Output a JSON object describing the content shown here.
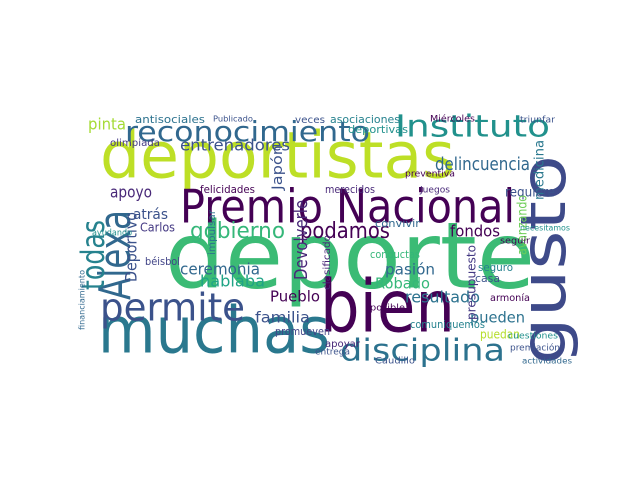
{
  "words": [
    "deportistas",
    "deporte",
    "muchas",
    "bien",
    "gusto",
    "Premio Nacional",
    "Alexa",
    "todas",
    "permite",
    "reconocimiento",
    "Instituto",
    "disciplina",
    "podamos",
    "gobierno",
    "entrenadores",
    "delincuencia",
    "Devolverle",
    "pinta",
    "apoyo",
    "fondos",
    "ceremonia",
    "hablaba",
    "familia",
    "Pueblo",
    "resultado",
    "Robado",
    "pasión",
    "pueden",
    "puedan",
    "Deportivo",
    "atrás",
    "Carlos",
    "béisbol",
    "medicina",
    "requiere",
    "avanzando",
    "presupuesto",
    "Japón",
    "antisociales",
    "asociaciones",
    "deportivas",
    "promueven",
    "comuniquemos",
    "felicidades",
    "merecidos",
    "convivir",
    "conductas",
    "seguro",
    "casa",
    "armonía",
    "clasificado",
    "impulsar",
    "olimpiada",
    "veces",
    "Miércoles",
    "apoyar",
    "entrega",
    "posible",
    "cuestiones",
    "premiación",
    "Juegos",
    "preventiva",
    "ayudando",
    "financiamiento",
    "Caudillo",
    "actividades",
    "triunfar",
    "seguir",
    "necesitamos",
    "Publicado"
  ]
}
